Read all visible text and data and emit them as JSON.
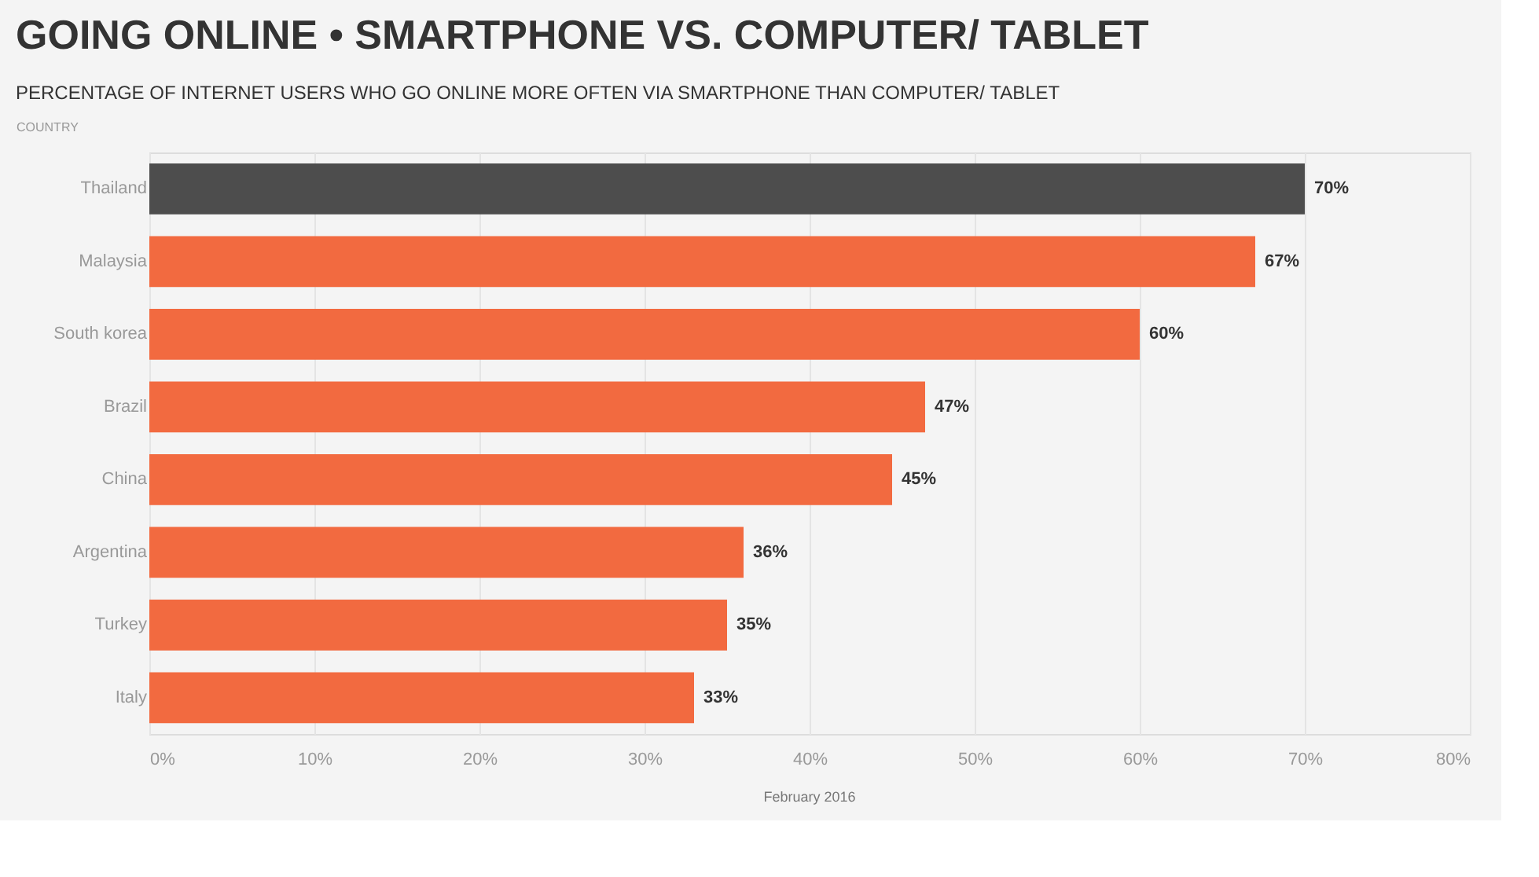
{
  "chart_data": {
    "type": "bar",
    "orientation": "horizontal",
    "title": "GOING ONLINE • SMARTPHONE VS. COMPUTER/ TABLET",
    "subtitle": "PERCENTAGE OF INTERNET USERS WHO GO ONLINE MORE OFTEN VIA SMARTPHONE THAN COMPUTER/ TABLET",
    "ylabel": "COUNTRY",
    "categories": [
      "Thailand",
      "Malaysia",
      "South korea",
      "Brazil",
      "China",
      "Argentina",
      "Turkey",
      "Italy"
    ],
    "values": [
      70,
      67,
      60,
      47,
      45,
      36,
      35,
      33
    ],
    "colors": [
      "#4d4d4d",
      "#f26a40",
      "#f26a40",
      "#f26a40",
      "#f26a40",
      "#f26a40",
      "#f26a40",
      "#f26a40"
    ],
    "value_labels": [
      "70%",
      "67%",
      "60%",
      "47%",
      "45%",
      "36%",
      "35%",
      "33%"
    ],
    "xlim": [
      0,
      80
    ],
    "xticks": [
      {
        "value": 0,
        "label": "0%"
      },
      {
        "value": 10,
        "label": "10%"
      },
      {
        "value": 20,
        "label": "20%"
      },
      {
        "value": 30,
        "label": "30%"
      },
      {
        "value": 40,
        "label": "40%"
      },
      {
        "value": 50,
        "label": "50%"
      },
      {
        "value": 60,
        "label": "60%"
      },
      {
        "value": 70,
        "label": "70%"
      },
      {
        "value": 80,
        "label": "80%"
      }
    ],
    "grid": "x",
    "annotations": [
      "February 2016"
    ]
  }
}
